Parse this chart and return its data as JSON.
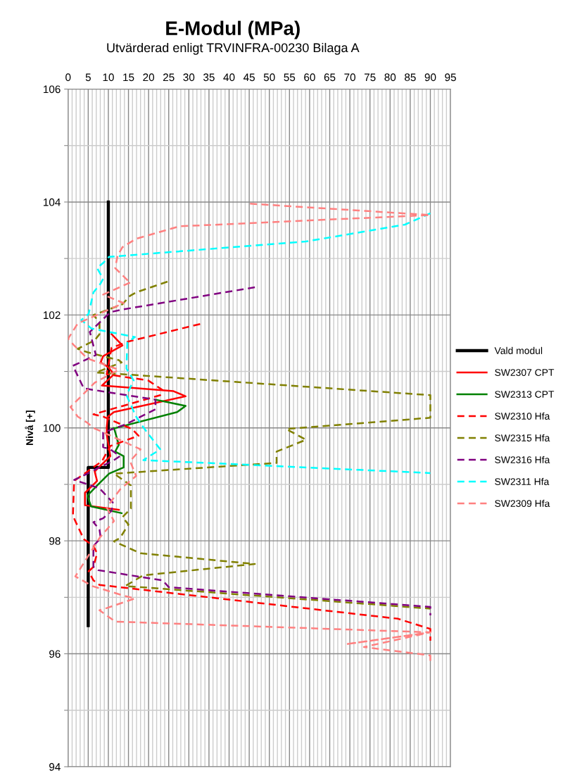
{
  "chart_data": {
    "type": "line",
    "title": "E-Modul (MPa)",
    "subtitle": "Utvärderad enligt TRVINFRA-00230 Bilaga A",
    "ylabel": "Nivå [+]",
    "xlim": [
      0,
      95
    ],
    "ylim": [
      94,
      106
    ],
    "xticks": [
      0,
      {
        "value": 1,
        "label": null
      },
      {
        "value": 2,
        "label": null
      },
      {
        "value": 3,
        "label": null
      },
      {
        "value": 4,
        "label": null
      },
      5,
      {
        "value": 6,
        "label": null
      },
      {
        "value": 7,
        "label": null
      },
      {
        "value": 8,
        "label": null
      },
      {
        "value": 9,
        "label": null
      },
      10,
      {
        "value": 11,
        "label": null
      },
      {
        "value": 12,
        "label": null
      },
      {
        "value": 13,
        "label": null
      },
      {
        "value": 14,
        "label": null
      },
      15,
      {
        "value": 16,
        "label": null
      },
      {
        "value": 17,
        "label": null
      },
      {
        "value": 18,
        "label": null
      },
      {
        "value": 19,
        "label": null
      },
      20,
      {
        "value": 21,
        "label": null
      },
      {
        "value": 22,
        "label": null
      },
      {
        "value": 23,
        "label": null
      },
      {
        "value": 24,
        "label": null
      },
      25,
      {
        "value": 26,
        "label": null
      },
      {
        "value": 27,
        "label": null
      },
      {
        "value": 28,
        "label": null
      },
      {
        "value": 29,
        "label": null
      },
      30,
      {
        "value": 31,
        "label": null
      },
      {
        "value": 32,
        "label": null
      },
      {
        "value": 33,
        "label": null
      },
      {
        "value": 34,
        "label": null
      },
      35,
      {
        "value": 36,
        "label": null
      },
      {
        "value": 37,
        "label": null
      },
      {
        "value": 38,
        "label": null
      },
      {
        "value": 39,
        "label": null
      },
      40,
      {
        "value": 41,
        "label": null
      },
      {
        "value": 42,
        "label": null
      },
      {
        "value": 43,
        "label": null
      },
      {
        "value": 44,
        "label": null
      },
      45,
      {
        "value": 46,
        "label": null
      },
      {
        "value": 47,
        "label": null
      },
      {
        "value": 48,
        "label": null
      },
      {
        "value": 49,
        "label": null
      },
      50,
      {
        "value": 51,
        "label": null
      },
      {
        "value": 52,
        "label": null
      },
      {
        "value": 53,
        "label": null
      },
      {
        "value": 54,
        "label": null
      },
      55,
      {
        "value": 56,
        "label": null
      },
      {
        "value": 57,
        "label": null
      },
      {
        "value": 58,
        "label": null
      },
      {
        "value": 59,
        "label": null
      },
      60,
      {
        "value": 61,
        "label": null
      },
      {
        "value": 62,
        "label": null
      },
      {
        "value": 63,
        "label": null
      },
      {
        "value": 64,
        "label": null
      },
      65,
      {
        "value": 66,
        "label": null
      },
      {
        "value": 67,
        "label": null
      },
      {
        "value": 68,
        "label": null
      },
      {
        "value": 69,
        "label": null
      },
      70,
      {
        "value": 71,
        "label": null
      },
      {
        "value": 72,
        "label": null
      },
      {
        "value": 73,
        "label": null
      },
      {
        "value": 74,
        "label": null
      },
      75,
      {
        "value": 76,
        "label": null
      },
      {
        "value": 77,
        "label": null
      },
      {
        "value": 78,
        "label": null
      },
      {
        "value": 79,
        "label": null
      },
      80,
      {
        "value": 81,
        "label": null
      },
      {
        "value": 82,
        "label": null
      },
      {
        "value": 83,
        "label": null
      },
      {
        "value": 84,
        "label": null
      },
      85,
      {
        "value": 86,
        "label": null
      },
      {
        "value": 87,
        "label": null
      },
      {
        "value": 88,
        "label": null
      },
      {
        "value": 89,
        "label": null
      },
      90,
      {
        "value": 91,
        "label": null
      },
      {
        "value": 92,
        "label": null
      },
      {
        "value": 93,
        "label": null
      },
      {
        "value": 94,
        "label": null
      },
      95
    ],
    "yticks": [
      94,
      {
        "value": 95,
        "label": null
      },
      96,
      {
        "value": 97,
        "label": null
      },
      98,
      {
        "value": 99,
        "label": null
      },
      100,
      {
        "value": 101,
        "label": null
      },
      102,
      {
        "value": 103,
        "label": null
      },
      104,
      {
        "value": 105,
        "label": null
      },
      106
    ],
    "grid": true,
    "legend": "right",
    "marker": "none",
    "series": [
      {
        "name": "Vald modul",
        "color": "#000000",
        "line_style": "solid",
        "x": [
          10,
          10,
          5,
          5
        ],
        "values": [
          104,
          99.3,
          99.3,
          96.5
        ]
      },
      {
        "name": "SW2307 CPT",
        "color": "#ff0000",
        "line_style": "solid",
        "x": [
          10.8,
          13.5,
          8.7,
          8.1,
          9.9,
          11.4,
          8.4,
          26.2,
          29.2,
          11.4,
          9.9,
          9.6,
          9.6,
          10.5,
          6.6,
          7.2,
          4.2,
          4.2,
          12.6
        ],
        "values": [
          101.66,
          101.46,
          101.27,
          101.16,
          101.08,
          100.95,
          100.75,
          100.65,
          100.56,
          100.28,
          100.2,
          100.02,
          99.88,
          99.5,
          99.23,
          99.06,
          98.85,
          98.63,
          98.55
        ]
      },
      {
        "name": "SW2313 CPT",
        "color": "#008000",
        "line_style": "solid",
        "x": [
          21.7,
          29.2,
          27.1,
          10.8,
          11.4,
          12.6,
          11.7,
          13.8,
          13.8,
          10.2,
          7.2,
          4.8,
          5.7,
          13.3
        ],
        "values": [
          100.5,
          100.39,
          100.28,
          99.98,
          100.0,
          99.7,
          99.58,
          99.5,
          99.3,
          99.19,
          98.98,
          98.8,
          98.61,
          98.49
        ]
      },
      {
        "name": "SW2310 Hfa",
        "color": "#ff0000",
        "line_style": "dashed",
        "x": [
          32.8,
          15.0,
          10.8,
          9.6,
          19.9,
          23.5,
          22.9,
          6.3,
          8.7,
          15.9,
          17.5,
          10.5,
          8.4,
          1.5,
          1.2,
          3.9,
          6.3,
          7.2,
          6.3,
          5.1,
          6.3,
          7.8,
          82,
          90,
          90
        ],
        "values": [
          101.84,
          101.53,
          101.42,
          100.95,
          100.84,
          100.67,
          100.58,
          100.24,
          100.2,
          99.98,
          99.86,
          99.68,
          99.41,
          99.06,
          98.44,
          98.03,
          97.91,
          97.78,
          97.54,
          97.46,
          97.3,
          97.22,
          96.62,
          96.44,
          96.23
        ]
      },
      {
        "name": "SW2315 Hfa",
        "color": "#808000",
        "line_style": "dashed",
        "x": [
          24.7,
          16.9,
          15.4,
          13.5,
          8.7,
          6.3,
          7.8,
          7.8,
          6.6,
          2.4,
          4.8,
          12.6,
          13.3,
          6.9,
          9.6,
          90,
          90,
          54.2,
          59.1,
          51.8,
          51.8,
          11.4,
          15.6,
          15.6,
          13.5,
          15.0,
          12.9,
          11.4,
          18,
          46.4,
          18.7,
          14.2,
          90
        ],
        "values": [
          102.59,
          102.4,
          102.34,
          102.19,
          102.06,
          102.0,
          101.87,
          101.66,
          101.55,
          101.4,
          101.34,
          101.2,
          101.16,
          100.98,
          100.97,
          100.58,
          100.18,
          99.98,
          99.79,
          99.58,
          99.38,
          99.19,
          98.98,
          98.57,
          98.42,
          98.29,
          98.05,
          97.99,
          97.78,
          97.59,
          97.39,
          97.2,
          96.8
        ]
      },
      {
        "name": "SW2316 Hfa",
        "color": "#800080",
        "line_style": "dashed",
        "x": [
          46.4,
          13.8,
          10.5,
          5.4,
          6.9,
          1.2,
          3.9,
          21.7,
          21.7,
          14.5,
          11.1,
          8.7,
          8.7,
          10.5,
          12.9,
          11.4,
          4.2,
          1.5,
          7.8,
          11.1,
          10.8,
          8.7,
          6.3,
          7.8,
          8.1,
          6.3,
          6.3,
          7.5,
          23.5,
          25,
          90,
          90
        ],
        "values": [
          102.49,
          102.1,
          102.05,
          101.7,
          101.29,
          101.1,
          100.7,
          100.5,
          100.33,
          100.07,
          99.98,
          99.92,
          99.66,
          99.62,
          99.5,
          99.43,
          99.17,
          99.08,
          98.93,
          98.68,
          98.53,
          98.4,
          98.33,
          98.2,
          98.05,
          97.91,
          97.54,
          97.48,
          97.3,
          97.18,
          96.83,
          96.68
        ]
      },
      {
        "name": "SW2311 Hfa",
        "color": "#00ffff",
        "line_style": "dashed",
        "x": [
          90,
          83.7,
          59,
          41,
          10.2,
          8.7,
          7.2,
          8.7,
          8.1,
          6.3,
          5.1,
          3.3,
          5.8,
          16.6,
          14.7,
          14.5,
          16.3,
          14.5,
          16.9,
          19,
          22.9,
          18.7,
          90
        ],
        "values": [
          103.8,
          103.6,
          103.3,
          103.2,
          103.03,
          102.92,
          102.83,
          102.64,
          102.56,
          102.4,
          102.02,
          101.91,
          101.76,
          101.61,
          101.51,
          101.05,
          100.84,
          100.58,
          100.2,
          99.98,
          99.62,
          99.43,
          99.2
        ]
      },
      {
        "name": "SW2309 Hfa",
        "color": "#ff8080",
        "line_style": "dashed",
        "x": [
          45.2,
          90,
          27.7,
          16.9,
          13.5,
          12.3,
          11.7,
          14.7,
          15.6,
          8.7,
          13.8,
          2.4,
          0,
          1.5,
          4.8,
          12.6,
          6.6,
          0.6,
          2.4,
          4.8,
          6.3,
          18,
          15.4,
          16.9,
          12.9,
          9.6,
          11.4,
          7.8,
          1.8,
          6.0,
          13.8,
          16.6,
          9.6,
          7.8,
          11.7,
          90,
          69,
          90,
          73.5,
          90,
          90
        ],
        "values": [
          103.97,
          103.77,
          103.57,
          103.35,
          103.2,
          103.05,
          102.83,
          102.62,
          102.58,
          102.36,
          102.21,
          101.85,
          101.58,
          101.46,
          101.23,
          101.03,
          100.8,
          100.37,
          100.2,
          100.09,
          100.0,
          99.62,
          99.41,
          99.15,
          98.91,
          98.59,
          98.35,
          98.05,
          97.37,
          97.2,
          97.03,
          96.98,
          96.81,
          96.77,
          96.57,
          96.38,
          96.17,
          96.38,
          96.12,
          95.97,
          95.87
        ]
      }
    ]
  }
}
